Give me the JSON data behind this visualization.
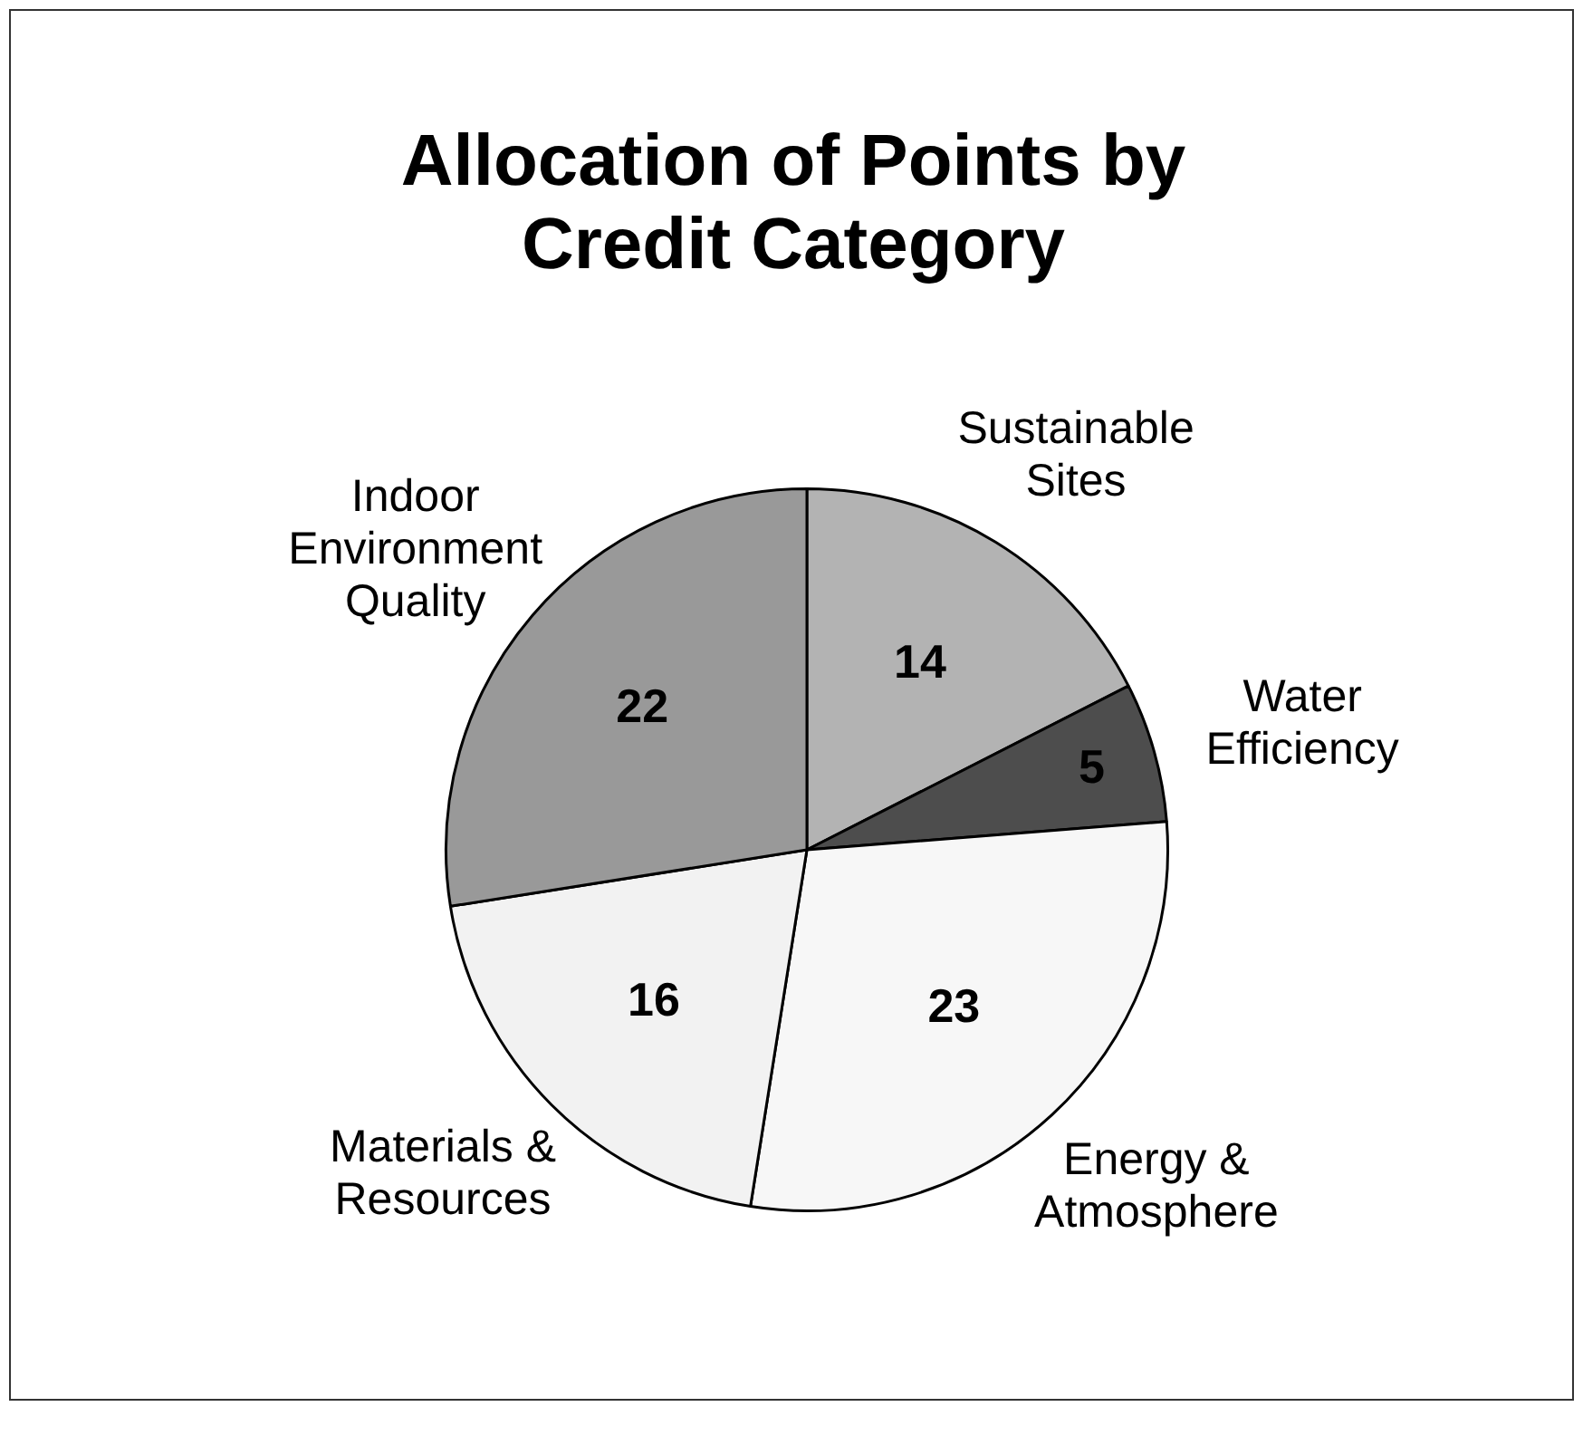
{
  "chart_data": {
    "type": "pie",
    "title": "Allocation of Points by Credit Category",
    "categories": [
      "Sustainable Sites",
      "Water Efficiency",
      "Energy & Atmosphere",
      "Materials & Resources",
      "Indoor Environment Quality"
    ],
    "values": [
      14,
      5,
      23,
      16,
      22
    ],
    "colors": [
      "#b3b3b3",
      "#4d4d4d",
      "#f7f7f7",
      "#f2f2f2",
      "#999999"
    ],
    "data_labels": true
  }
}
